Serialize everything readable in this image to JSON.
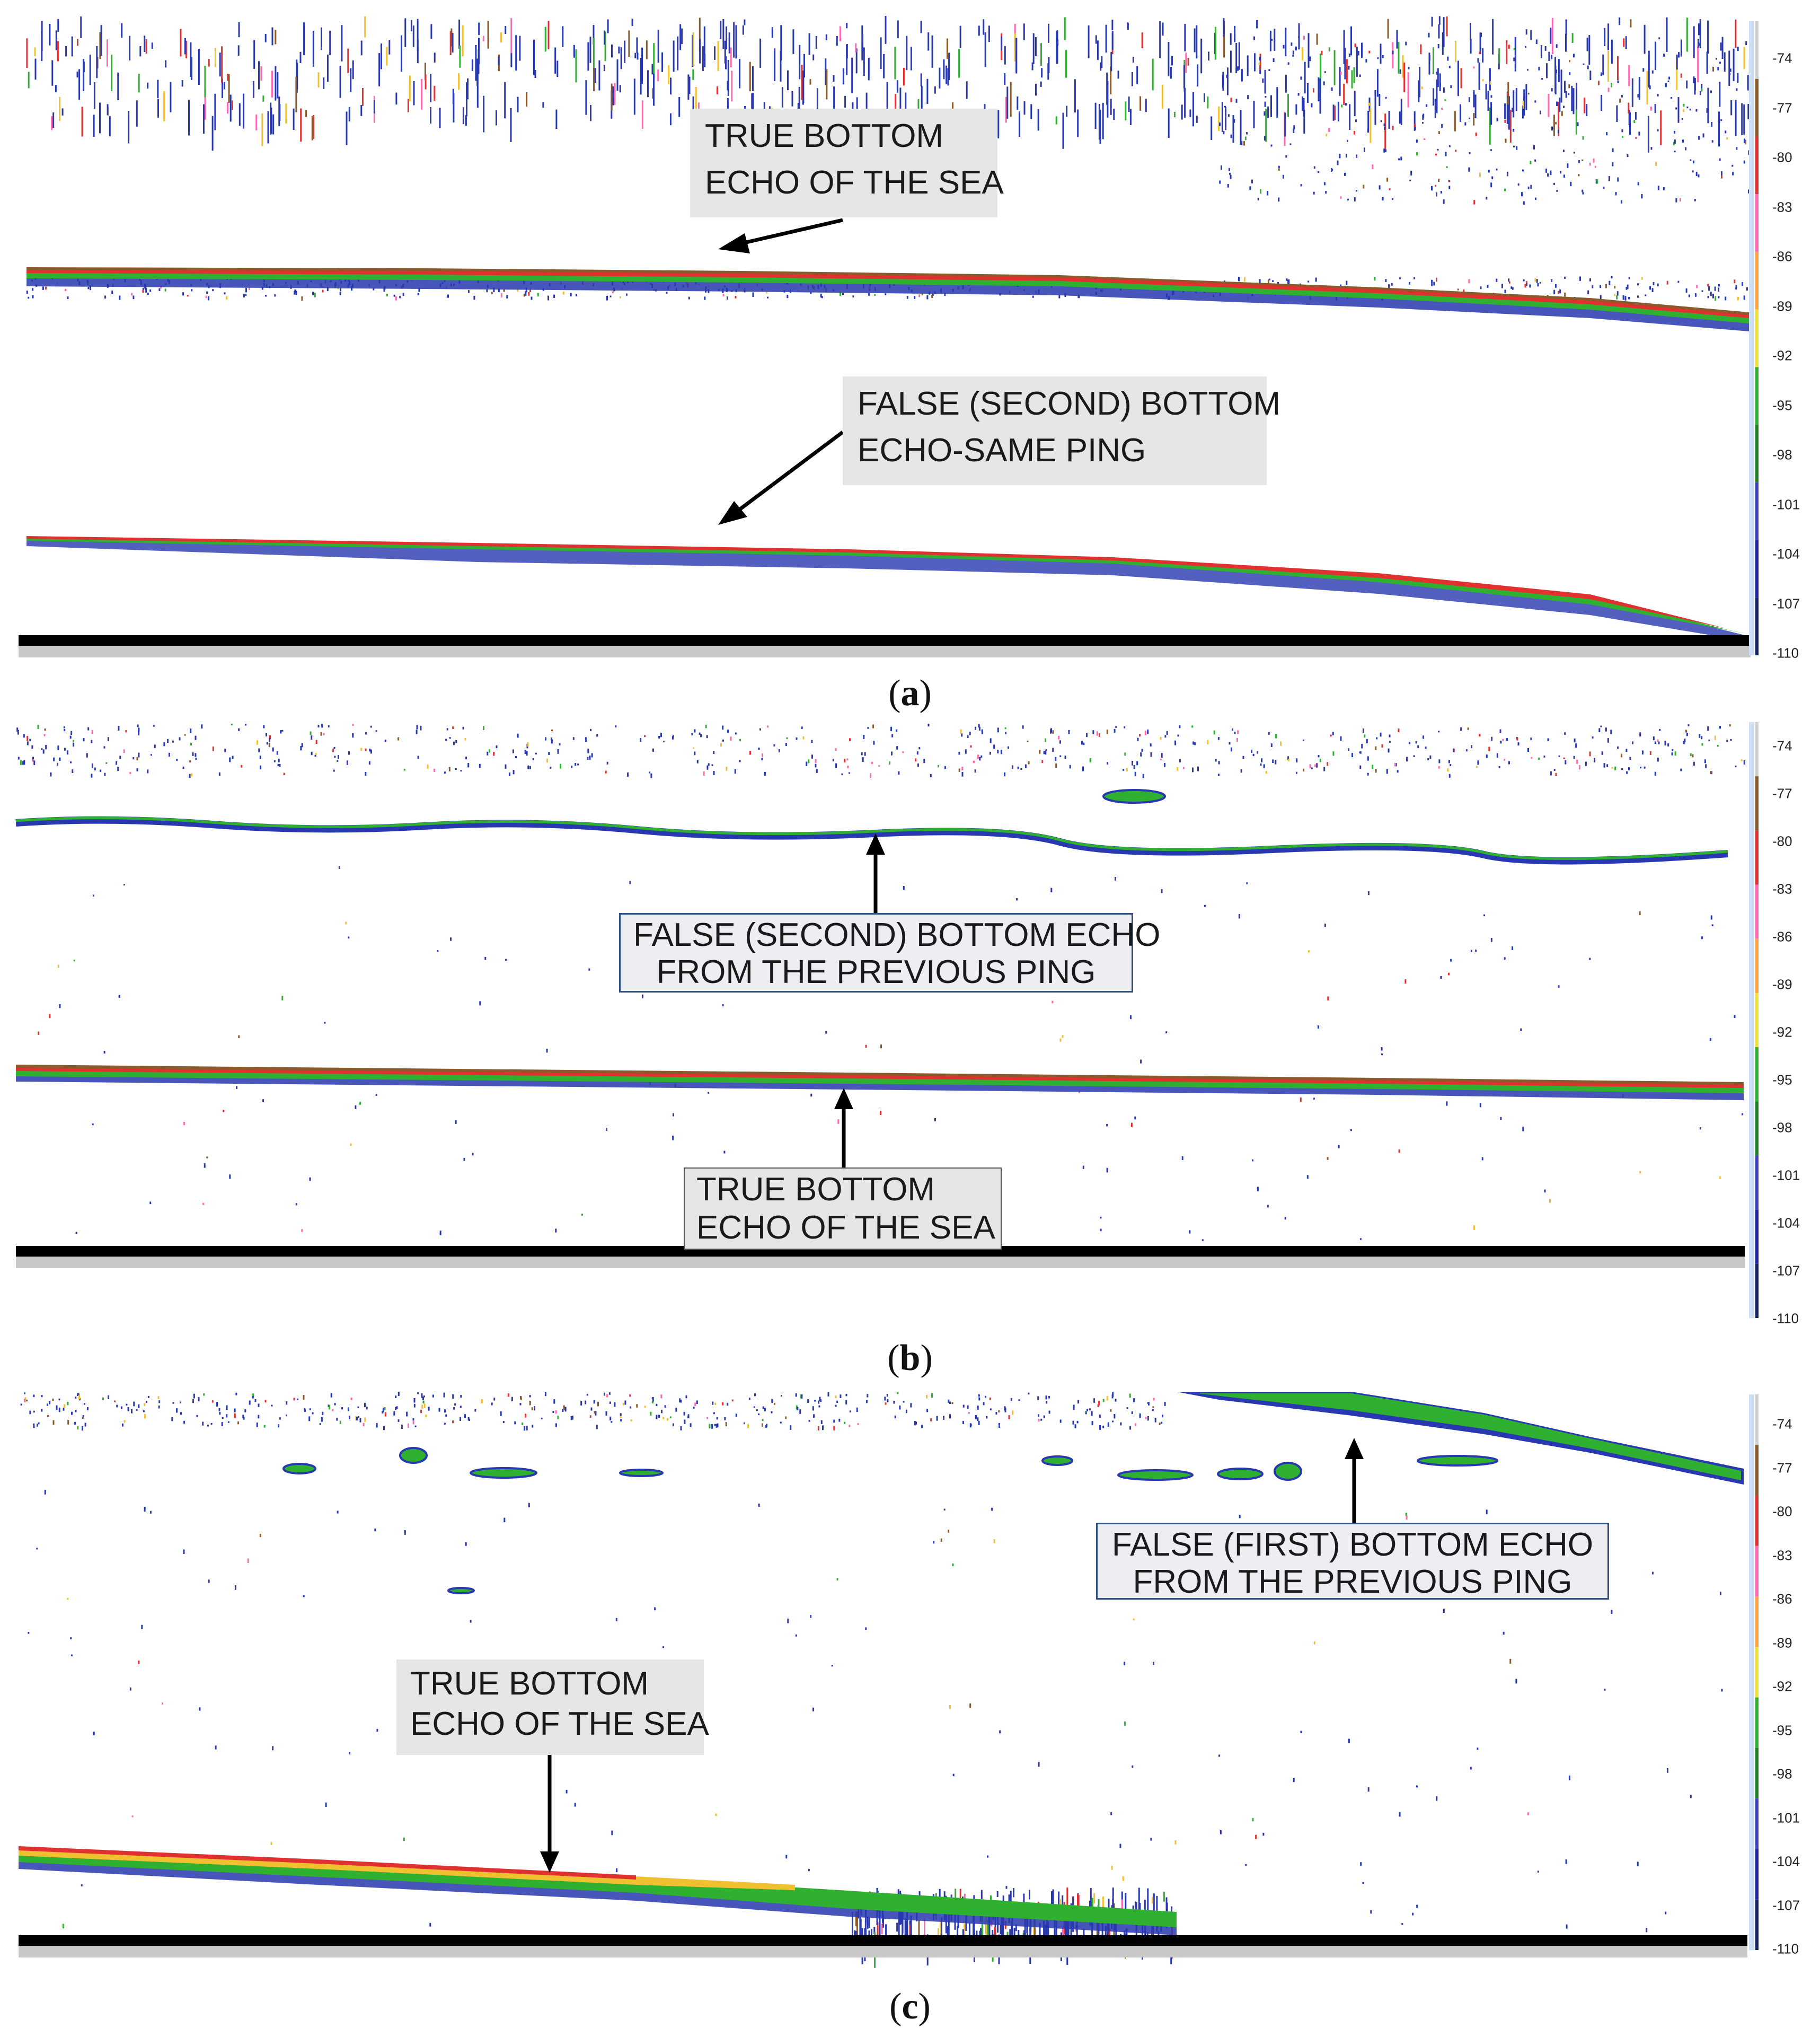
{
  "scale_ticks": [
    "-74",
    "-77",
    "-80",
    "-83",
    "-86",
    "-89",
    "-92",
    "-95",
    "-98",
    "-101",
    "-104",
    "-107",
    "-110"
  ],
  "scale_colors": [
    "#d0d0d0",
    "#8a5a2a",
    "#e03030",
    "#ff69b4",
    "#ffa040",
    "#f0e040",
    "#30b030",
    "#208020",
    "#4040c0",
    "#2020a0",
    "#102060"
  ],
  "panels": [
    {
      "letter": "a",
      "callouts": [
        {
          "lines": [
            "TRUE BOTTOM",
            "ECHO OF THE SEA"
          ]
        },
        {
          "lines": [
            "FALSE (SECOND) BOTTOM",
            "ECHO-SAME PING"
          ]
        }
      ]
    },
    {
      "letter": "b",
      "callouts": [
        {
          "lines": [
            "FALSE (SECOND) BOTTOM ECHO",
            "FROM THE PREVIOUS PING"
          ]
        },
        {
          "lines": [
            "TRUE BOTTOM",
            "ECHO OF THE SEA"
          ]
        }
      ]
    },
    {
      "letter": "c",
      "callouts": [
        {
          "lines": [
            "FALSE (FIRST) BOTTOM ECHO",
            "FROM THE PREVIOUS PING"
          ]
        },
        {
          "lines": [
            "TRUE BOTTOM",
            "ECHO OF THE SEA"
          ]
        }
      ]
    }
  ]
}
